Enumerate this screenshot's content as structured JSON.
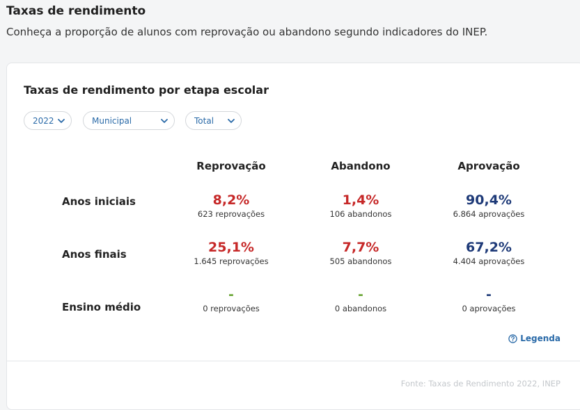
{
  "header": {
    "title": "Taxas de rendimento",
    "subtitle": "Conheça a proporção de alunos com reprovação ou abandono segundo indicadores do INEP."
  },
  "card": {
    "title": "Taxas de rendimento por etapa escolar",
    "filters": {
      "year": "2022",
      "network": "Municipal",
      "location": "Total"
    },
    "columns": [
      "Reprovação",
      "Abandono",
      "Aprovação"
    ],
    "rows": [
      {
        "label": "Anos iniciais",
        "reprovacao": {
          "pct": "8,2%",
          "count": "623 reprovações"
        },
        "abandono": {
          "pct": "1,4%",
          "count": "106 abandonos"
        },
        "aprovacao": {
          "pct": "90,4%",
          "count": "6.864 aprovações"
        }
      },
      {
        "label": "Anos finais",
        "reprovacao": {
          "pct": "25,1%",
          "count": "1.645 reprovações"
        },
        "abandono": {
          "pct": "7,7%",
          "count": "505 abandonos"
        },
        "aprovacao": {
          "pct": "67,2%",
          "count": "4.404 aprovações"
        }
      },
      {
        "label": "Ensino médio",
        "reprovacao": {
          "pct": "-",
          "count": "0 reprovações"
        },
        "abandono": {
          "pct": "-",
          "count": "0 abandonos"
        },
        "aprovacao": {
          "pct": "-",
          "count": "0 aprovações"
        }
      }
    ],
    "legend_label": "Legenda",
    "source": "Fonte: Taxas de Rendimento 2022, INEP"
  },
  "colors": {
    "negative": "#c62828",
    "positive": "#1e3a78",
    "empty": "#6aa534",
    "link": "#2a6aa8"
  },
  "icons": {
    "chevron": "chevron-down-icon",
    "help": "help-circle-icon"
  }
}
